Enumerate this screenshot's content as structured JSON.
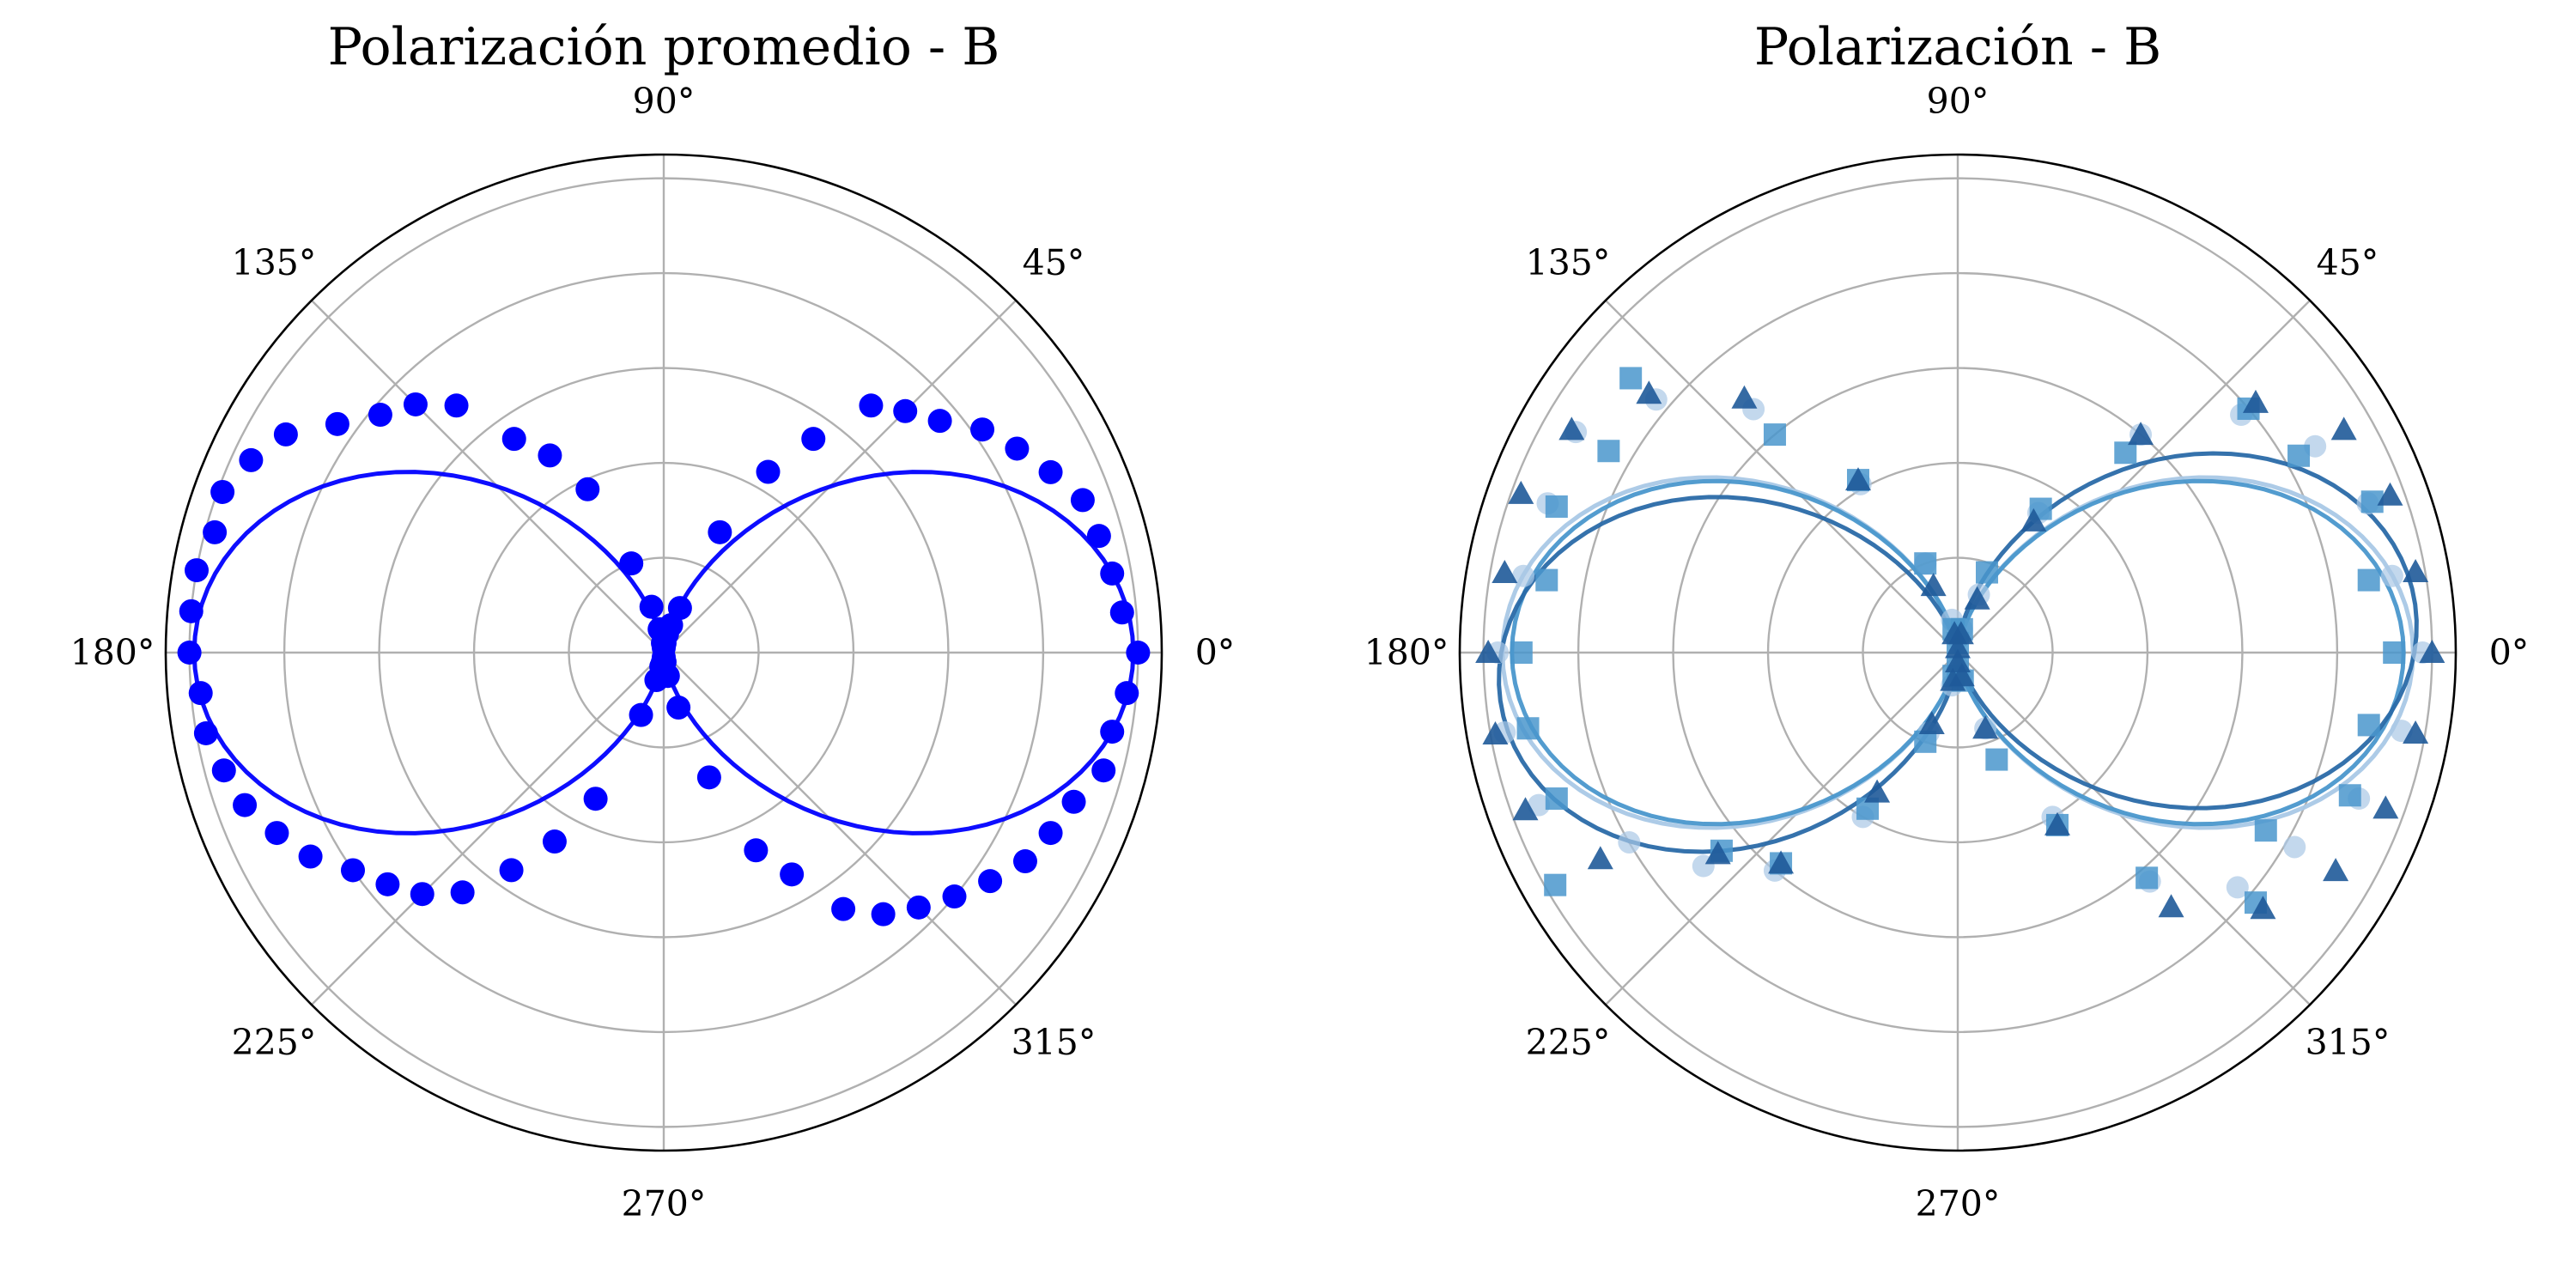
{
  "chart_data": [
    {
      "type": "polar-scatter",
      "title": "Polarización promedio - B",
      "theta_ticks_deg": [
        "0°",
        "45°",
        "90°",
        "135°",
        "180°",
        "225°",
        "270°",
        "315°"
      ],
      "r_range": [
        0,
        1.05
      ],
      "r_grid": [
        0.2,
        0.4,
        0.6,
        0.8,
        1.0
      ],
      "grid": true,
      "series": [
        {
          "kind": "points",
          "marker": "circle",
          "color": "#0000ff",
          "theta_deg": [
            0,
            5,
            10,
            15,
            20,
            25,
            30,
            35,
            40,
            45,
            50,
            55,
            60,
            65,
            70,
            75,
            80,
            85,
            90,
            95,
            100,
            105,
            110,
            115,
            120,
            125,
            130,
            135,
            140,
            145,
            150,
            155,
            160,
            165,
            170,
            175,
            180,
            185,
            190,
            195,
            200,
            205,
            210,
            215,
            220,
            225,
            230,
            235,
            240,
            245,
            250,
            255,
            260,
            265,
            270,
            275,
            280,
            285,
            290,
            295,
            300,
            305,
            310,
            315,
            320,
            325,
            330,
            335,
            340,
            345,
            350,
            355
          ],
          "r": [
            1.0,
            0.97,
            0.96,
            0.95,
            0.94,
            0.9,
            0.86,
            0.82,
            0.76,
            0.72,
            0.68,
            0.55,
            0.44,
            0.28,
            0.1,
            0.06,
            0.04,
            0.02,
            0.01,
            0.02,
            0.05,
            0.1,
            0.2,
            0.38,
            0.48,
            0.55,
            0.68,
            0.74,
            0.78,
            0.84,
            0.92,
            0.96,
            0.99,
            0.98,
            1.0,
            1.0,
            1.0,
            0.98,
            0.98,
            0.96,
            0.94,
            0.9,
            0.86,
            0.8,
            0.76,
            0.72,
            0.66,
            0.56,
            0.46,
            0.34,
            0.14,
            0.06,
            0.03,
            0.02,
            0.01,
            0.02,
            0.05,
            0.12,
            0.28,
            0.46,
            0.54,
            0.66,
            0.72,
            0.76,
            0.8,
            0.84,
            0.88,
            0.9,
            0.92,
            0.96,
            0.96,
            0.98
          ]
        },
        {
          "kind": "fit-line",
          "color": "#0000ff",
          "model": "r = A·cos²(θ−φ)",
          "A": 0.99,
          "phi_deg": 0
        }
      ]
    },
    {
      "type": "polar-scatter",
      "title": "Polarización - B",
      "theta_ticks_deg": [
        "0°",
        "45°",
        "90°",
        "135°",
        "180°",
        "225°",
        "270°",
        "315°"
      ],
      "r_range": [
        0,
        1.05
      ],
      "r_grid": [
        0.2,
        0.4,
        0.6,
        0.8,
        1.0
      ],
      "grid": true,
      "series": [
        {
          "kind": "points",
          "marker": "circle",
          "color": "#a9c8e6",
          "theta_deg": [
            0,
            10,
            20,
            30,
            40,
            50,
            60,
            70,
            80,
            90,
            100,
            110,
            120,
            130,
            140,
            150,
            160,
            170,
            180,
            190,
            200,
            210,
            220,
            230,
            240,
            250,
            260,
            270,
            280,
            290,
            300,
            310,
            320,
            330,
            340,
            350
          ],
          "r": [
            0.98,
            0.93,
            0.92,
            0.87,
            0.78,
            0.6,
            0.34,
            0.13,
            0.05,
            0.03,
            0.07,
            0.2,
            0.41,
            0.67,
            0.83,
            0.93,
            0.92,
            0.93,
            0.97,
            0.97,
            0.94,
            0.8,
            0.7,
            0.6,
            0.4,
            0.18,
            0.07,
            0.03,
            0.05,
            0.17,
            0.4,
            0.63,
            0.77,
            0.82,
            0.9,
            0.95
          ]
        },
        {
          "kind": "points",
          "marker": "square",
          "color": "#4a97cc",
          "theta_deg": [
            0,
            10,
            20,
            30,
            40,
            50,
            60,
            70,
            80,
            90,
            100,
            110,
            120,
            130,
            140,
            150,
            160,
            170,
            180,
            190,
            200,
            210,
            220,
            230,
            240,
            250,
            260,
            270,
            280,
            290,
            300,
            310,
            320,
            330,
            340,
            350
          ],
          "r": [
            0.92,
            0.88,
            0.93,
            0.83,
            0.8,
            0.55,
            0.35,
            0.18,
            0.05,
            0.02,
            0.05,
            0.2,
            0.42,
            0.6,
            0.9,
            0.85,
            0.9,
            0.88,
            0.92,
            0.92,
            0.9,
            0.98,
            0.65,
            0.58,
            0.38,
            0.2,
            0.05,
            0.03,
            0.06,
            0.24,
            0.42,
            0.62,
            0.82,
            0.75,
            0.88,
            0.88
          ]
        },
        {
          "kind": "points",
          "marker": "triangle",
          "color": "#1f5a99",
          "theta_deg": [
            0,
            10,
            20,
            30,
            40,
            50,
            60,
            70,
            80,
            90,
            100,
            110,
            120,
            130,
            140,
            150,
            160,
            170,
            180,
            190,
            200,
            210,
            220,
            230,
            240,
            250,
            260,
            270,
            280,
            290,
            300,
            310,
            320,
            330,
            340,
            350
          ],
          "r": [
            1.0,
            0.98,
            0.97,
            0.94,
            0.82,
            0.6,
            0.32,
            0.12,
            0.04,
            0.01,
            0.04,
            0.15,
            0.42,
            0.7,
            0.85,
            0.94,
            0.98,
            0.97,
            0.99,
            0.99,
            0.97,
            0.87,
            0.66,
            0.58,
            0.34,
            0.16,
            0.06,
            0.02,
            0.05,
            0.17,
            0.42,
            0.7,
            0.84,
            0.92,
            0.96,
            0.98
          ]
        },
        {
          "kind": "fit-line",
          "color": "#a9c8e6",
          "model": "r = A·cos²(θ−φ)",
          "A": 0.96,
          "phi_deg": 0
        },
        {
          "kind": "fit-line",
          "color": "#4a97cc",
          "model": "r = A·cos²(θ−φ)",
          "A": 0.94,
          "phi_deg": 0
        },
        {
          "kind": "fit-line",
          "color": "#2a6aa8",
          "model": "r = A·cos²(θ−φ)",
          "A": 0.97,
          "phi_deg": 5
        }
      ]
    }
  ]
}
